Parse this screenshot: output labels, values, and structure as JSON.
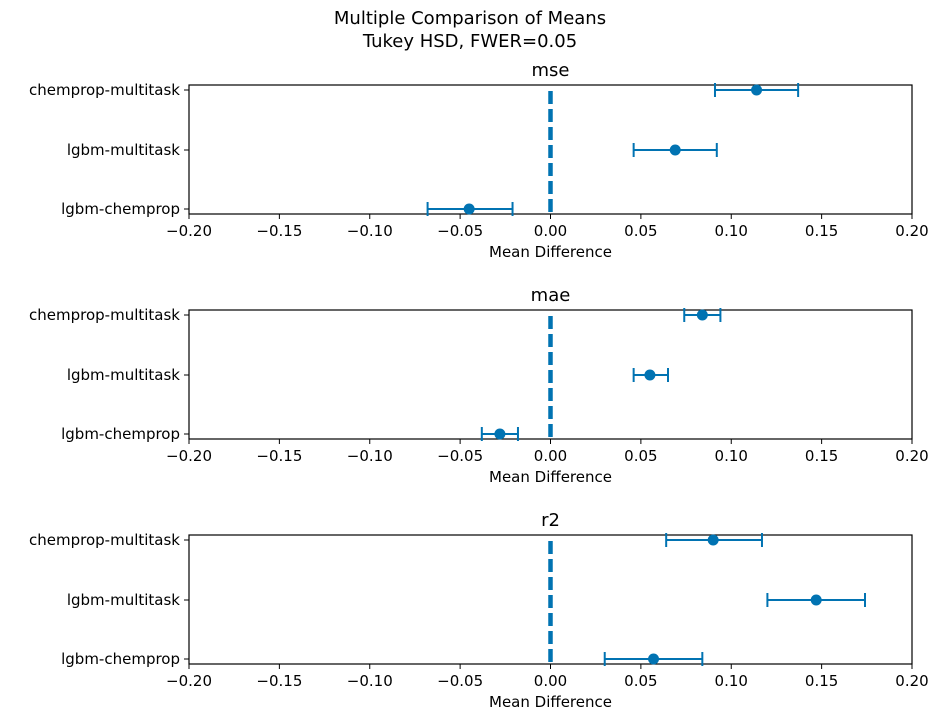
{
  "figure": {
    "suptitle_line1": "Multiple Comparison of Means",
    "suptitle_line2": "Tukey HSD, FWER=0.05"
  },
  "style": {
    "marker_color": "#0173b2",
    "zero_line_color": "#0173b2",
    "axis_color": "#000000"
  },
  "chart_data": [
    {
      "type": "scatter",
      "title": "mse",
      "xlabel": "Mean Difference",
      "xlim": [
        -0.2,
        0.2
      ],
      "xticks": [
        -0.2,
        -0.15,
        -0.1,
        -0.05,
        0.0,
        0.05,
        0.1,
        0.15,
        0.2
      ],
      "xtick_labels": [
        "−0.20",
        "−0.15",
        "−0.10",
        "−0.05",
        "0.00",
        "0.05",
        "0.10",
        "0.15",
        "0.20"
      ],
      "reference_line_x": 0.0,
      "categories": [
        "chemprop-multitask",
        "lgbm-multitask",
        "lgbm-chemprop"
      ],
      "means": [
        0.114,
        0.069,
        -0.045
      ],
      "lower": [
        0.091,
        0.046,
        -0.068
      ],
      "upper": [
        0.137,
        0.092,
        -0.021
      ]
    },
    {
      "type": "scatter",
      "title": "mae",
      "xlabel": "Mean Difference",
      "xlim": [
        -0.2,
        0.2
      ],
      "xticks": [
        -0.2,
        -0.15,
        -0.1,
        -0.05,
        0.0,
        0.05,
        0.1,
        0.15,
        0.2
      ],
      "xtick_labels": [
        "−0.20",
        "−0.15",
        "−0.10",
        "−0.05",
        "0.00",
        "0.05",
        "0.10",
        "0.15",
        "0.20"
      ],
      "reference_line_x": 0.0,
      "categories": [
        "chemprop-multitask",
        "lgbm-multitask",
        "lgbm-chemprop"
      ],
      "means": [
        0.084,
        0.055,
        -0.028
      ],
      "lower": [
        0.074,
        0.046,
        -0.038
      ],
      "upper": [
        0.094,
        0.065,
        -0.018
      ]
    },
    {
      "type": "scatter",
      "title": "r2",
      "xlabel": "Mean Difference",
      "xlim": [
        -0.2,
        0.2
      ],
      "xticks": [
        -0.2,
        -0.15,
        -0.1,
        -0.05,
        0.0,
        0.05,
        0.1,
        0.15,
        0.2
      ],
      "xtick_labels": [
        "−0.20",
        "−0.15",
        "−0.10",
        "−0.05",
        "0.00",
        "0.05",
        "0.10",
        "0.15",
        "0.20"
      ],
      "reference_line_x": 0.0,
      "categories": [
        "chemprop-multitask",
        "lgbm-multitask",
        "lgbm-chemprop"
      ],
      "means": [
        0.09,
        0.147,
        0.057
      ],
      "lower": [
        0.064,
        0.12,
        0.03
      ],
      "upper": [
        0.117,
        0.174,
        0.084
      ]
    }
  ]
}
